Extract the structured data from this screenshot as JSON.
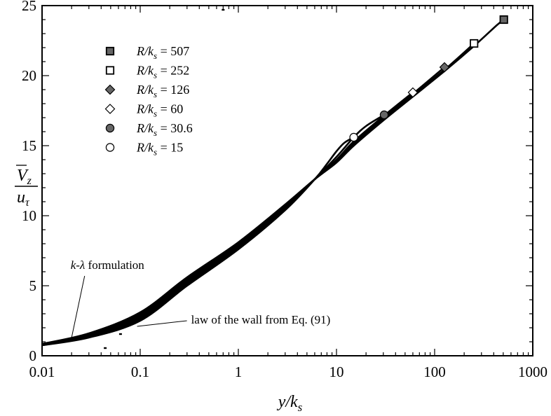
{
  "chart_data": {
    "type": "line",
    "xscale": "log",
    "xlim": [
      0.01,
      1000
    ],
    "ylim": [
      0,
      25
    ],
    "x_ticks": [
      0.01,
      0.1,
      1,
      10,
      100,
      1000
    ],
    "x_tick_labels": [
      "0.01",
      "0.1",
      "1",
      "10",
      "100",
      "1000"
    ],
    "y_ticks": [
      0,
      5,
      10,
      15,
      20,
      25
    ],
    "y_tick_labels": [
      "0",
      "5",
      "10",
      "15",
      "20",
      "25"
    ],
    "xlabel": {
      "main": "y/k",
      "sub": "s"
    },
    "ylabel": {
      "numerator": "V",
      "numerator_sub": "z",
      "denominator": "u",
      "denominator_sub": "τ"
    },
    "grid": false,
    "legend_position": "top-left",
    "series": [
      {
        "name": "R/k_s = 507",
        "label_main": "R/k",
        "label_sub": "s",
        "label_value": " = 507",
        "marker": "square",
        "fill": "#666666",
        "x": [
          0.01,
          0.03,
          0.1,
          0.3,
          1,
          3,
          6,
          10,
          15,
          30,
          60,
          130,
          260,
          430,
          507
        ],
        "y": [
          0.85,
          1.6,
          3.1,
          5.6,
          8.1,
          10.8,
          12.6,
          13.8,
          15.0,
          16.8,
          18.5,
          20.4,
          22.2,
          23.6,
          24.0
        ]
      },
      {
        "name": "R/k_s = 252",
        "label_main": "R/k",
        "label_sub": "s",
        "label_value": " = 252",
        "marker": "square",
        "fill": "#ffffff",
        "x": [
          0.01,
          0.03,
          0.1,
          0.3,
          1,
          3,
          6,
          10,
          15,
          30,
          60,
          130,
          252
        ],
        "y": [
          0.8,
          1.5,
          2.9,
          5.4,
          8.0,
          10.7,
          12.6,
          13.8,
          15.1,
          16.9,
          18.6,
          20.5,
          22.3
        ]
      },
      {
        "name": "R/k_s = 126",
        "label_main": "R/k",
        "label_sub": "s",
        "label_value": " = 126",
        "marker": "diamond",
        "fill": "#666666",
        "x": [
          0.01,
          0.03,
          0.1,
          0.3,
          1,
          3,
          6,
          10,
          15,
          30,
          60,
          126
        ],
        "y": [
          0.78,
          1.45,
          2.8,
          5.3,
          7.9,
          10.6,
          12.6,
          13.9,
          15.2,
          17.0,
          18.7,
          20.6
        ]
      },
      {
        "name": "R/k_s = 60",
        "label_main": "R/k",
        "label_sub": "s",
        "label_value": " = 60",
        "marker": "diamond",
        "fill": "#ffffff",
        "x": [
          0.01,
          0.03,
          0.1,
          0.3,
          1,
          3,
          6,
          10,
          15,
          30,
          60
        ],
        "y": [
          0.76,
          1.4,
          2.7,
          5.2,
          7.8,
          10.6,
          12.6,
          14.0,
          15.3,
          17.1,
          18.8
        ]
      },
      {
        "name": "R/k_s = 30.6",
        "label_main": "R/k",
        "label_sub": "s",
        "label_value": " = 30.6",
        "marker": "circle",
        "fill": "#666666",
        "x": [
          0.01,
          0.03,
          0.1,
          0.3,
          1,
          3,
          6,
          10,
          15,
          20,
          30.6
        ],
        "y": [
          0.75,
          1.35,
          2.6,
          5.1,
          7.7,
          10.5,
          12.6,
          14.2,
          15.6,
          16.4,
          17.2
        ]
      },
      {
        "name": "R/k_s = 15",
        "label_main": "R/k",
        "label_sub": "s",
        "label_value": " = 15",
        "marker": "circle",
        "fill": "#ffffff",
        "x": [
          0.01,
          0.03,
          0.1,
          0.3,
          1,
          3,
          6,
          8,
          10,
          12,
          15
        ],
        "y": [
          0.75,
          1.3,
          2.5,
          5.0,
          7.6,
          10.4,
          12.6,
          13.7,
          14.6,
          15.2,
          15.6
        ]
      }
    ],
    "law_of_wall_dots": {
      "x": [
        0.044,
        0.063,
        0.085,
        0.13,
        0.7
      ],
      "y": [
        0.55,
        1.55,
        2.45,
        3.45,
        24.7
      ]
    },
    "annotations": [
      {
        "text_italic": "k-λ",
        "text_rest": " formulation",
        "target_x": 0.02,
        "target_y": 1.3,
        "text_x": 0.032,
        "text_y": 6.0
      },
      {
        "text_italic": "",
        "text_rest": "law of the wall from Eq. (91)",
        "target_x": 0.093,
        "target_y": 2.1,
        "text_x": 0.33,
        "text_y": 2.3
      }
    ]
  }
}
